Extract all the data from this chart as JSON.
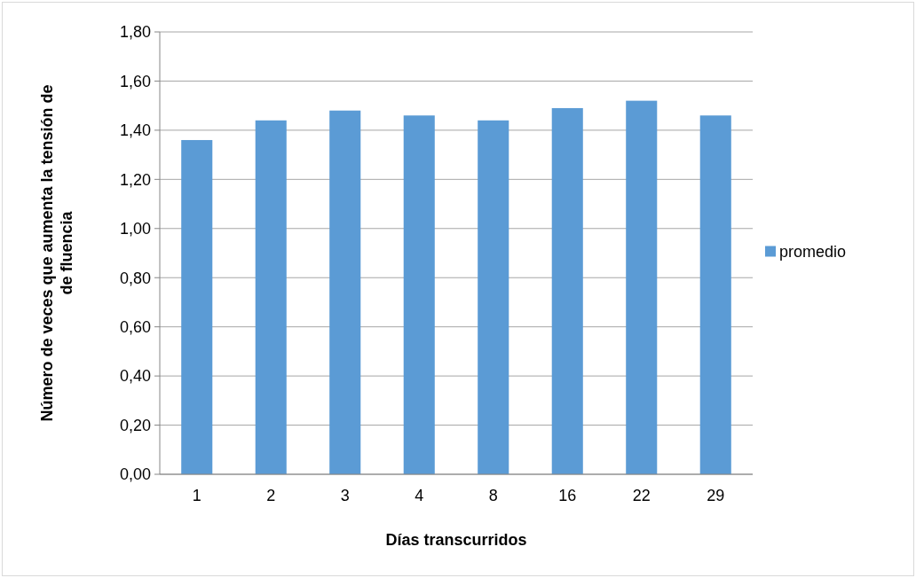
{
  "chart_data": {
    "type": "bar",
    "xlabel": "Días transcurridos",
    "ylabel": "Número de veces que aumenta la tensión de de fluencia",
    "categories": [
      "1",
      "2",
      "3",
      "4",
      "8",
      "16",
      "22",
      "29"
    ],
    "series": [
      {
        "name": "promedio",
        "color": "#5b9bd5",
        "values": [
          1.36,
          1.44,
          1.48,
          1.46,
          1.44,
          1.49,
          1.52,
          1.46
        ]
      }
    ],
    "ylim": [
      0,
      1.8
    ],
    "yticks": [
      {
        "value": 0,
        "label": "0,00"
      },
      {
        "value": 0.2,
        "label": "0,20"
      },
      {
        "value": 0.4,
        "label": "0,40"
      },
      {
        "value": 0.6,
        "label": "0,60"
      },
      {
        "value": 0.8,
        "label": "0,80"
      },
      {
        "value": 1,
        "label": "1,00"
      },
      {
        "value": 1.2,
        "label": "1,20"
      },
      {
        "value": 1.4,
        "label": "1,40"
      },
      {
        "value": 1.6,
        "label": "1,60"
      },
      {
        "value": 1.8,
        "label": "1,80"
      }
    ],
    "grid": "y",
    "legend": "right"
  }
}
